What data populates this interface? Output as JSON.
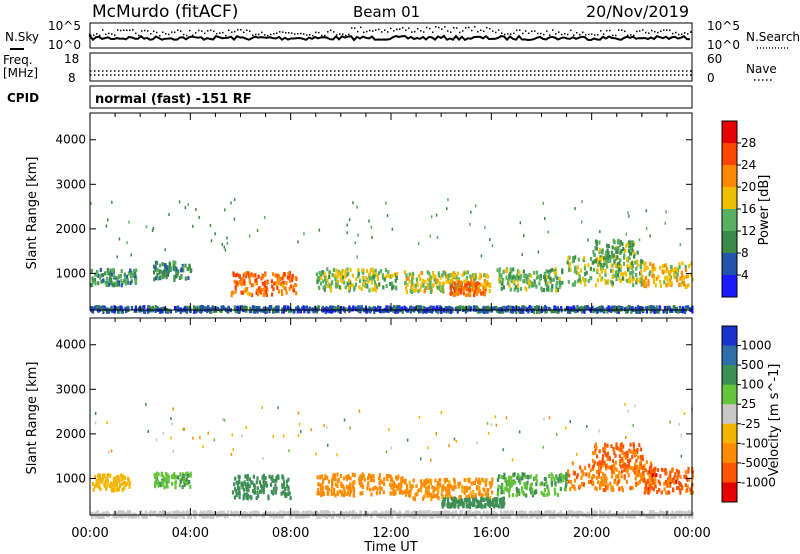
{
  "header": {
    "station": "McMurdo (fitACF)",
    "beam": "Beam 01",
    "date": "20/Nov/2019"
  },
  "noise_panel": {
    "left_label": "N.Sky",
    "right_label": "N.Search",
    "tick_top": "10^5",
    "tick_bottom": "10^0"
  },
  "freq_panel": {
    "left_label_1": "Freq.",
    "left_label_2": "[MHz]",
    "left_tick_top": "18",
    "left_tick_bottom": "8",
    "right_label": "Nave",
    "right_tick_top": "60",
    "right_tick_bottom": "0"
  },
  "cpid_panel": {
    "label": "CPID",
    "text": "normal (fast) -151 RF"
  },
  "x_axis": {
    "label": "Time UT",
    "ticks": [
      "00:00",
      "04:00",
      "08:00",
      "12:00",
      "16:00",
      "20:00",
      "00:00"
    ]
  },
  "chart_data": [
    {
      "type": "heatmap",
      "title": "Power",
      "ylabel": "Slant Range [km]",
      "xlabel": "",
      "x_range_hours": [
        0,
        24
      ],
      "ylim": [
        180,
        4600
      ],
      "y_ticks": [
        1000,
        2000,
        3000,
        4000
      ],
      "colorbar": {
        "label": "Power [dB]",
        "ticks": [
          "4",
          "8",
          "12",
          "16",
          "20",
          "24",
          "28"
        ],
        "range": [
          0,
          30
        ],
        "colors": [
          "#1a1aff",
          "#2255aa",
          "#3a8a4a",
          "#5ab062",
          "#f0c000",
          "#ff8800",
          "#ff4400",
          "#e60000"
        ]
      },
      "features": [
        {
          "t_start": 0.0,
          "t_end": 24.0,
          "range_center_km": 220,
          "range_width_km": 90,
          "value_db": 6
        },
        {
          "t_start": 0.0,
          "t_end": 1.8,
          "range_center_km": 950,
          "range_width_km": 220,
          "value_db": 10
        },
        {
          "t_start": 2.5,
          "t_end": 4.0,
          "range_center_km": 1100,
          "range_width_km": 250,
          "value_db": 9
        },
        {
          "t_start": 5.6,
          "t_end": 8.2,
          "range_center_km": 800,
          "range_width_km": 320,
          "value_db": 22
        },
        {
          "t_start": 9.0,
          "t_end": 12.2,
          "range_center_km": 900,
          "range_width_km": 300,
          "value_db": 14
        },
        {
          "t_start": 12.5,
          "t_end": 16.0,
          "range_center_km": 850,
          "range_width_km": 280,
          "value_db": 16
        },
        {
          "t_start": 14.3,
          "t_end": 15.8,
          "range_center_km": 700,
          "range_width_km": 180,
          "value_db": 22
        },
        {
          "t_start": 16.2,
          "t_end": 18.8,
          "range_center_km": 900,
          "range_width_km": 300,
          "value_db": 13
        },
        {
          "t_start": 19.0,
          "t_end": 22.0,
          "range_center_km": 1100,
          "range_width_km": 400,
          "value_db": 14
        },
        {
          "t_start": 20.0,
          "t_end": 21.8,
          "range_center_km": 1500,
          "range_width_km": 350,
          "value_db": 12
        },
        {
          "t_start": 22.0,
          "t_end": 24.0,
          "range_center_km": 1000,
          "range_width_km": 350,
          "value_db": 18
        }
      ]
    },
    {
      "type": "heatmap",
      "title": "Velocity",
      "ylabel": "Slant Range [km]",
      "xlabel": "Time UT",
      "x_range_hours": [
        0,
        24
      ],
      "ylim": [
        180,
        4600
      ],
      "y_ticks": [
        1000,
        2000,
        3000,
        4000
      ],
      "colorbar": {
        "label": "Velocity [m s^-1]",
        "ticks": [
          "1000",
          "500",
          "100",
          "25",
          "-25",
          "-100",
          "-500",
          "-1000"
        ],
        "colors": [
          "#1a33cc",
          "#2f6ea8",
          "#3e8f55",
          "#66c33c",
          "#c8c8c8",
          "#f5b400",
          "#ff8c00",
          "#ff5500",
          "#e60000"
        ]
      },
      "features": [
        {
          "t_start": 0.0,
          "t_end": 24.0,
          "range_center_km": 220,
          "range_width_km": 90,
          "value_ms": 0
        },
        {
          "t_start": 0.0,
          "t_end": 1.6,
          "range_center_km": 950,
          "range_width_km": 220,
          "value_ms": -60
        },
        {
          "t_start": 2.5,
          "t_end": 4.0,
          "range_center_km": 1000,
          "range_width_km": 200,
          "value_ms": 80
        },
        {
          "t_start": 5.6,
          "t_end": 8.0,
          "range_center_km": 850,
          "range_width_km": 320,
          "value_ms": 250
        },
        {
          "t_start": 9.0,
          "t_end": 12.5,
          "range_center_km": 900,
          "range_width_km": 300,
          "value_ms": -250
        },
        {
          "t_start": 12.5,
          "t_end": 16.0,
          "range_center_km": 800,
          "range_width_km": 280,
          "value_ms": -150
        },
        {
          "t_start": 14.0,
          "t_end": 16.5,
          "range_center_km": 500,
          "range_width_km": 120,
          "value_ms": 200
        },
        {
          "t_start": 16.2,
          "t_end": 19.0,
          "range_center_km": 900,
          "range_width_km": 300,
          "value_ms": 90
        },
        {
          "t_start": 19.0,
          "t_end": 22.5,
          "range_center_km": 1100,
          "range_width_km": 400,
          "value_ms": -400
        },
        {
          "t_start": 20.0,
          "t_end": 22.0,
          "range_center_km": 1550,
          "range_width_km": 350,
          "value_ms": -600
        },
        {
          "t_start": 22.0,
          "t_end": 24.0,
          "range_center_km": 1000,
          "range_width_km": 350,
          "value_ms": -700
        }
      ]
    }
  ]
}
